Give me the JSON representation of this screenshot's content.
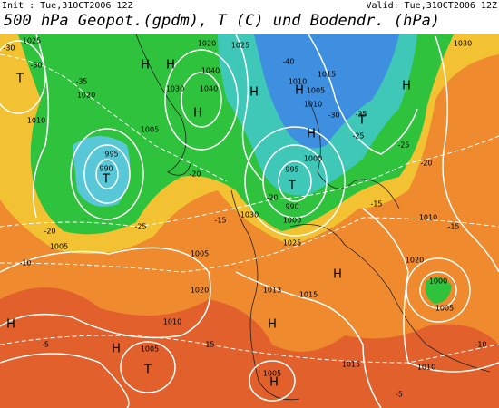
{
  "header": {
    "init": "Init : Tue,31OCT2006 12Z",
    "valid": "Valid: Tue,31OCT2006 12Z",
    "title": "500 hPa Geopot.(gpdm), T (C) und Bodendr. (hPa)"
  },
  "centers": [
    "H",
    "H",
    "H",
    "H",
    "H",
    "H",
    "H",
    "H",
    "H",
    "H",
    "H",
    "H",
    "T",
    "T",
    "T",
    "T",
    "T"
  ],
  "isobar_labels": [
    1025,
    1020,
    1025,
    1040,
    1030,
    1040,
    1020,
    1010,
    1005,
    995,
    990,
    1010,
    1015,
    1005,
    1010,
    1000,
    995,
    990,
    1000,
    1025,
    1030,
    1005,
    1020,
    1013,
    1015,
    1010,
    1005,
    1005,
    1015,
    1010,
    1000,
    1005,
    1030,
    1020,
    1010,
    1005
  ],
  "temperature_labels": [
    -30,
    -30,
    -35,
    -40,
    -20,
    -15,
    -20,
    -15,
    -5,
    -25,
    -20,
    -15,
    -15,
    -10,
    -10,
    -5,
    -35,
    -30,
    -25,
    -20,
    -25
  ]
}
